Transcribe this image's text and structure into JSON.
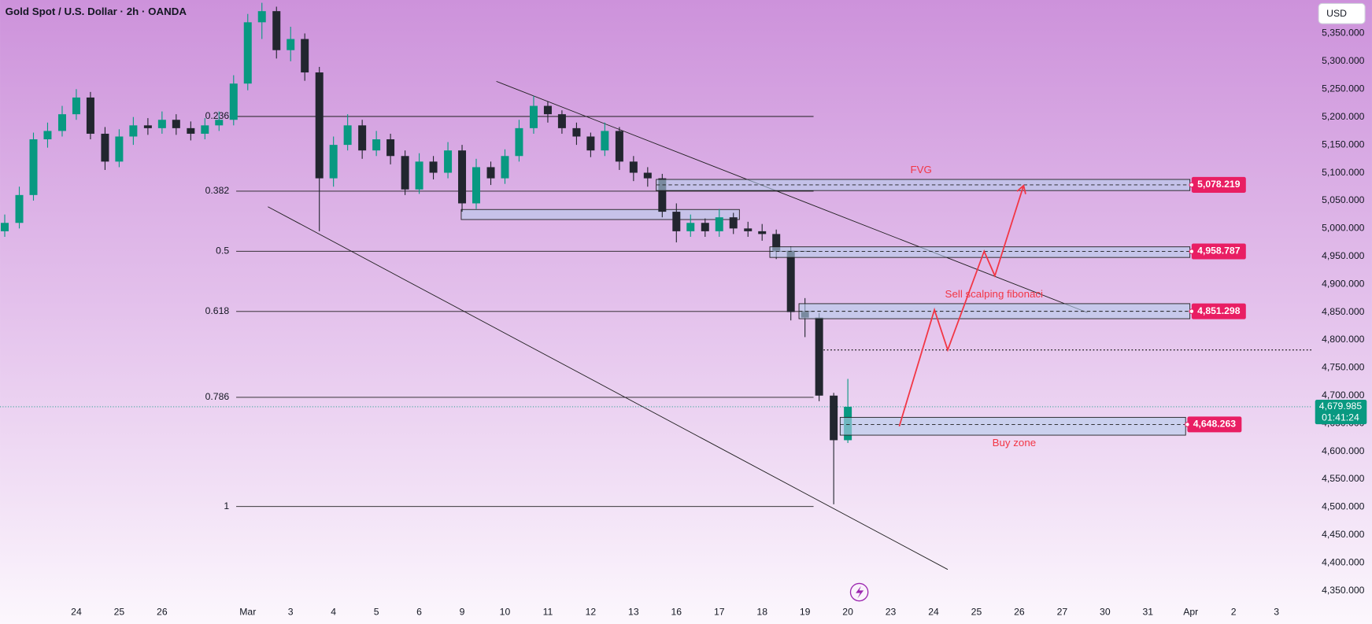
{
  "chart_data": {
    "type": "candlestick",
    "title": "Gold Spot / U.S. Dollar · 2h · OANDA",
    "currency": "USD",
    "up_color": "#089981",
    "down_color": "#22262f",
    "x": [
      -1.67,
      -1.33,
      -1,
      -0.67,
      -0.33,
      0,
      0.33,
      0.67,
      1,
      1.33,
      1.67,
      2,
      2.33,
      2.67,
      3,
      3.33,
      3.67,
      4,
      4.33,
      4.67,
      5,
      5.33,
      5.67,
      6,
      6.33,
      6.67,
      7,
      7.33,
      7.67,
      8,
      8.33,
      8.67,
      9,
      9.33,
      9.67,
      10,
      10.33,
      10.67,
      11,
      11.33,
      11.67,
      12,
      12.33,
      12.67,
      13,
      13.33,
      13.67,
      14,
      14.33,
      14.67,
      15,
      15.33,
      15.67,
      16,
      16.33,
      16.67,
      17,
      17.33,
      17.67,
      18
    ],
    "open": [
      4995,
      5010,
      5060,
      5160,
      5175,
      5205,
      5235,
      5170,
      5120,
      5165,
      5185,
      5180,
      5195,
      5180,
      5170,
      5185,
      5195,
      5260,
      5370,
      5390,
      5320,
      5340,
      5280,
      5090,
      5150,
      5185,
      5140,
      5160,
      5130,
      5070,
      5120,
      5100,
      5140,
      5045,
      5110,
      5090,
      5130,
      5180,
      5220,
      5205,
      5180,
      5165,
      5140,
      5175,
      5120,
      5100,
      5090,
      5030,
      4995,
      5010,
      4995,
      5020,
      5000,
      4995,
      4990,
      4960,
      4850,
      4840,
      4700,
      4620
    ],
    "high": [
      5025,
      5075,
      5172,
      5190,
      5220,
      5250,
      5245,
      5182,
      5178,
      5200,
      5198,
      5210,
      5205,
      5192,
      5198,
      5210,
      5275,
      5385,
      5405,
      5398,
      5362,
      5350,
      5290,
      5165,
      5205,
      5195,
      5175,
      5170,
      5140,
      5135,
      5130,
      5155,
      5150,
      5125,
      5120,
      5142,
      5195,
      5238,
      5228,
      5212,
      5190,
      5172,
      5190,
      5182,
      5130,
      5110,
      5098,
      5045,
      5025,
      5018,
      5035,
      5028,
      5012,
      5008,
      4998,
      4968,
      4875,
      4848,
      4705,
      4730
    ],
    "low": [
      4985,
      5000,
      5050,
      5145,
      5165,
      5195,
      5160,
      5105,
      5110,
      5150,
      5168,
      5170,
      5168,
      5158,
      5160,
      5175,
      5185,
      5248,
      5340,
      5305,
      5300,
      5265,
      4995,
      5075,
      5140,
      5125,
      5130,
      5115,
      5060,
      5062,
      5088,
      5090,
      5030,
      5035,
      5078,
      5080,
      5120,
      5170,
      5190,
      5170,
      5150,
      5128,
      5130,
      5105,
      5085,
      5075,
      5020,
      4975,
      4985,
      4985,
      4985,
      4990,
      4985,
      4978,
      4945,
      4835,
      4805,
      4690,
      4505,
      4615
    ],
    "close": [
      5010,
      5060,
      5160,
      5175,
      5205,
      5235,
      5170,
      5120,
      5165,
      5185,
      5180,
      5195,
      5180,
      5170,
      5185,
      5195,
      5260,
      5370,
      5390,
      5320,
      5340,
      5280,
      5090,
      5150,
      5185,
      5140,
      5160,
      5130,
      5070,
      5120,
      5100,
      5140,
      5045,
      5110,
      5090,
      5130,
      5180,
      5220,
      5205,
      5180,
      5165,
      5140,
      5175,
      5120,
      5100,
      5090,
      5030,
      4995,
      5010,
      4995,
      5020,
      5000,
      4995,
      4990,
      4960,
      4850,
      4840,
      4700,
      4620,
      4680
    ],
    "xlim": [
      -1.78,
      28.84
    ],
    "xticks": [
      {
        "value": 0,
        "label": "24"
      },
      {
        "value": 1,
        "label": "25"
      },
      {
        "value": 2,
        "label": "26"
      },
      {
        "value": 4,
        "label": "Mar"
      },
      {
        "value": 5,
        "label": "3"
      },
      {
        "value": 6,
        "label": "4"
      },
      {
        "value": 7,
        "label": "5"
      },
      {
        "value": 8,
        "label": "6"
      },
      9,
      10,
      11,
      12,
      13,
      {
        "value": 14,
        "label": "16"
      },
      {
        "value": 15,
        "label": "17"
      },
      {
        "value": 16,
        "label": "18"
      },
      {
        "value": 17,
        "label": "19"
      },
      {
        "value": 18,
        "label": "20"
      },
      {
        "value": 19,
        "label": "23"
      },
      {
        "value": 20,
        "label": "24"
      },
      {
        "value": 21,
        "label": "25"
      },
      {
        "value": 22,
        "label": "26"
      },
      {
        "value": 23,
        "label": "27"
      },
      {
        "value": 24,
        "label": "30"
      },
      {
        "value": 25,
        "label": "31"
      },
      {
        "value": 26,
        "label": "Apr"
      },
      {
        "value": 27,
        "label": "2"
      },
      {
        "value": 28,
        "label": "3"
      }
    ],
    "ylim": [
      4330,
      5410
    ],
    "yticks": [
      {
        "value": 4350,
        "label": "4,350.000"
      },
      {
        "value": 4400,
        "label": "4,400.000"
      },
      {
        "value": 4450,
        "label": "4,450.000"
      },
      {
        "value": 4500,
        "label": "4,500.000"
      },
      {
        "value": 4550,
        "label": "4,550.000"
      },
      {
        "value": 4600,
        "label": "4,600.000"
      },
      {
        "value": 4650,
        "label": "4,650.000"
      },
      {
        "value": 4700,
        "label": "4,700.000"
      },
      {
        "value": 4750,
        "label": "4,750.000"
      },
      {
        "value": 4800,
        "label": "4,800.000"
      },
      {
        "value": 4850,
        "label": "4,850.000"
      },
      {
        "value": 4900,
        "label": "4,900.000"
      },
      {
        "value": 4950,
        "label": "4,950.000"
      },
      {
        "value": 5000,
        "label": "5,000.000"
      },
      {
        "value": 5050,
        "label": "5,050.000"
      },
      {
        "value": 5100,
        "label": "5,100.000"
      },
      {
        "value": 5150,
        "label": "5,150.000"
      },
      {
        "value": 5200,
        "label": "5,200.000"
      },
      {
        "value": 5250,
        "label": "5,250.000"
      },
      {
        "value": 5300,
        "label": "5,300.000"
      },
      {
        "value": 5350,
        "label": "5,350.000"
      }
    ],
    "last_price": {
      "value": 4679.985,
      "label": "4,679.985"
    },
    "countdown": "01:41:24",
    "fibonacci": {
      "levels": [
        0.236,
        0.382,
        0.5,
        0.618,
        0.786,
        1
      ],
      "prices": [
        5201,
        5067,
        4959,
        4851,
        4697,
        4501
      ],
      "x": [
        3.73,
        17.2
      ]
    },
    "zones": [
      {
        "price": {
          "value": 5078.219,
          "label": "5,078.219"
        },
        "top": 5088,
        "bottom": 5068,
        "x": [
          13.53,
          25.98
        ]
      },
      {
        "price": {
          "value": 4958.787,
          "label": "4,958.787"
        },
        "top": 4967,
        "bottom": 4948,
        "x": [
          16.18,
          25.98
        ]
      },
      {
        "price": {
          "value": 4851.298,
          "label": "4,851.298"
        },
        "top": 4865,
        "bottom": 4838,
        "x": [
          16.86,
          25.98
        ]
      },
      {
        "price": {
          "value": 4648.263,
          "label": "4,648.263"
        },
        "top": 4661,
        "bottom": 4629,
        "x": [
          17.82,
          25.88
        ]
      }
    ],
    "boxes": [
      {
        "top": 5034,
        "bottom": 5016,
        "x": [
          8.98,
          15.47
        ]
      }
    ],
    "trend_lines": [
      {
        "x": [
          9.8,
          23.59
        ],
        "y": [
          5264,
          4849
        ]
      },
      {
        "x": [
          4.47,
          20.33
        ],
        "y": [
          5039,
          4388
        ]
      }
    ],
    "level_line": {
      "price": 4782,
      "x": 17.27
    },
    "projection": {
      "color": "#f23645",
      "x": [
        19.2,
        20.02,
        20.33,
        21.18,
        21.43,
        22.1
      ],
      "y": [
        4645,
        4854,
        4782,
        4959,
        4915,
        5077
      ]
    },
    "annotations": [
      {
        "text": "FVG",
        "x": 19.71,
        "y": 5104
      },
      {
        "text": "Sell scalping fibonaci",
        "x": 21.41,
        "y": 4881
      },
      {
        "text": "Buy zone",
        "x": 21.88,
        "y": 4614
      }
    ]
  }
}
